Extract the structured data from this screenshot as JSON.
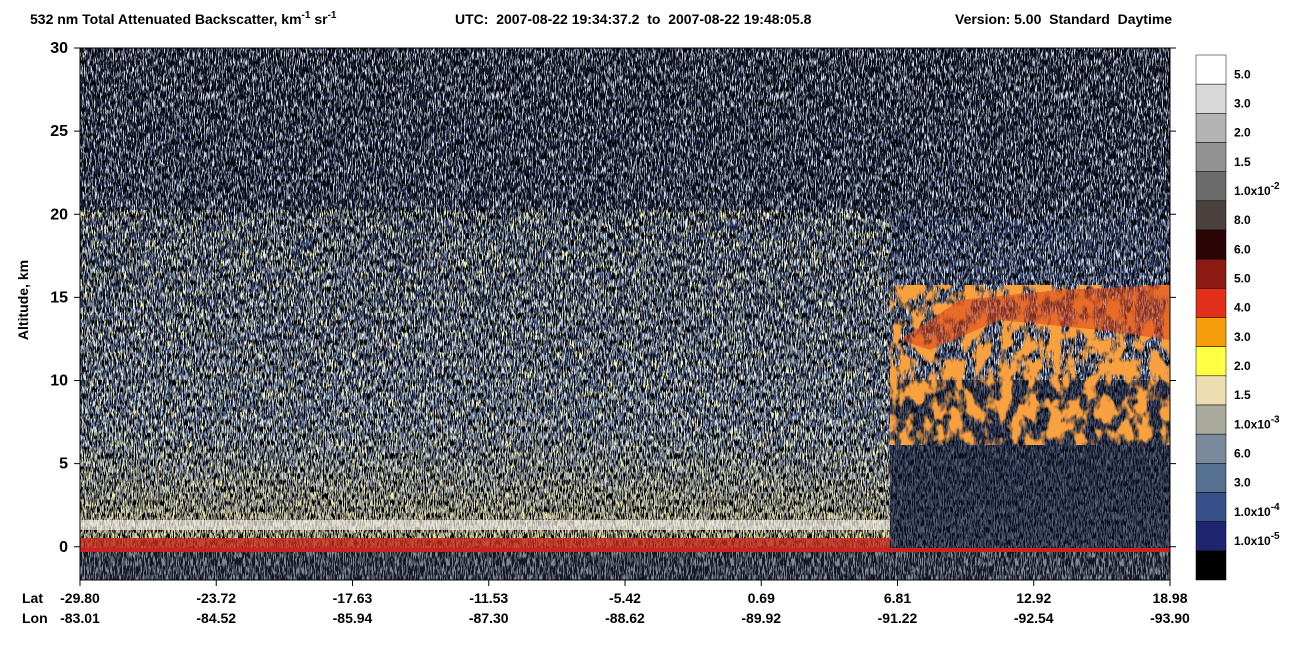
{
  "chart_data": {
    "type": "lidar-curtain",
    "title": {
      "main": "532 nm Total Attenuated Backscatter, km",
      "exp1": "-1",
      "unit2": " sr",
      "exp2": "-1",
      "utc": "UTC:  2007-08-22 19:34:37.2  to  2007-08-22 19:48:05.8",
      "version": "Version: 5.00  Standard  Daytime"
    },
    "y_label": "Altitude, km",
    "ylim": [
      -2,
      30
    ],
    "yticks": [
      0,
      5,
      10,
      15,
      20,
      25,
      30
    ],
    "x_rows": [
      {
        "name": "Lat",
        "categories": [
          "-29.80",
          "-23.72",
          "-17.63",
          "-11.53",
          "-5.42",
          "0.69",
          "6.81",
          "12.92",
          "18.98"
        ]
      },
      {
        "name": "Lon",
        "categories": [
          "-83.01",
          "-84.52",
          "-85.94",
          "-87.30",
          "-88.62",
          "-89.92",
          "-91.22",
          "-92.54",
          "-93.90"
        ]
      }
    ],
    "colorbar": {
      "colors": [
        "#ffffff",
        "#d9d9d9",
        "#b3b3b3",
        "#929292",
        "#6b6b6b",
        "#4a403d",
        "#2c0606",
        "#8c1a12",
        "#e2301a",
        "#f79d0b",
        "#ffff44",
        "#ecdcb0",
        "#a9aa9c",
        "#7a8a9c",
        "#56708f",
        "#38508a",
        "#1f2670",
        "#000000"
      ],
      "labels": [
        {
          "text": "5.0"
        },
        {
          "text": "3.0"
        },
        {
          "text": "2.0"
        },
        {
          "text": "1.5"
        },
        {
          "text": "1.0x10",
          "exp": "-2"
        },
        {
          "text": "8.0"
        },
        {
          "text": "6.0"
        },
        {
          "text": "5.0"
        },
        {
          "text": "4.0"
        },
        {
          "text": "3.0"
        },
        {
          "text": "2.0"
        },
        {
          "text": "1.5"
        },
        {
          "text": "1.0x10",
          "exp": "-3"
        },
        {
          "text": "6.0"
        },
        {
          "text": "3.0"
        },
        {
          "text": "1.0x10",
          "exp": "-4"
        },
        {
          "text": "1.0x10",
          "exp": "-5"
        },
        null
      ]
    }
  }
}
